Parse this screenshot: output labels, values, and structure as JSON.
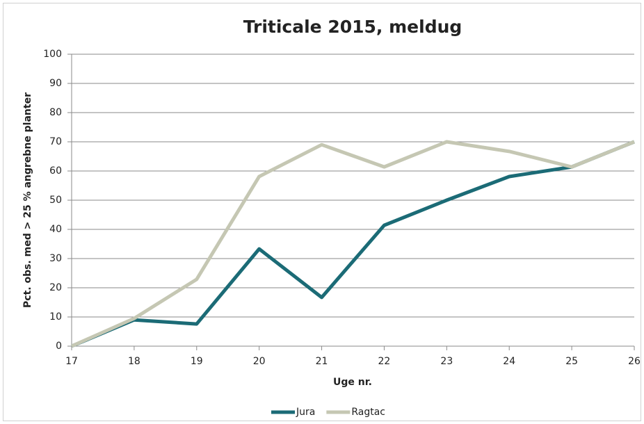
{
  "chart_data": {
    "type": "line",
    "title": "Triticale 2015, meldug",
    "x_label": "Uge nr.",
    "y_label": "Pct. obs. med > 25 % angrebne planter",
    "x": [
      17,
      18,
      19,
      20,
      21,
      22,
      23,
      24,
      25,
      26
    ],
    "series": [
      {
        "name": "Jura",
        "color": "#1b6b76",
        "values": [
          0,
          9,
          7.6,
          33.3,
          16.7,
          41.4,
          50,
          58.1,
          61.4,
          70
        ]
      },
      {
        "name": "Ragtac",
        "color": "#c5c7b3",
        "values": [
          0,
          9.5,
          22.9,
          58.1,
          69,
          61.4,
          70,
          66.7,
          61.4,
          70
        ]
      }
    ],
    "xlim": [
      17,
      26
    ],
    "xticks": [
      17,
      18,
      19,
      20,
      21,
      22,
      23,
      24,
      25,
      26
    ],
    "ylim": [
      0,
      100
    ],
    "yticks": [
      0,
      10,
      20,
      30,
      40,
      50,
      60,
      70,
      80,
      90,
      100
    ],
    "grid": true,
    "legend": "bottom"
  }
}
